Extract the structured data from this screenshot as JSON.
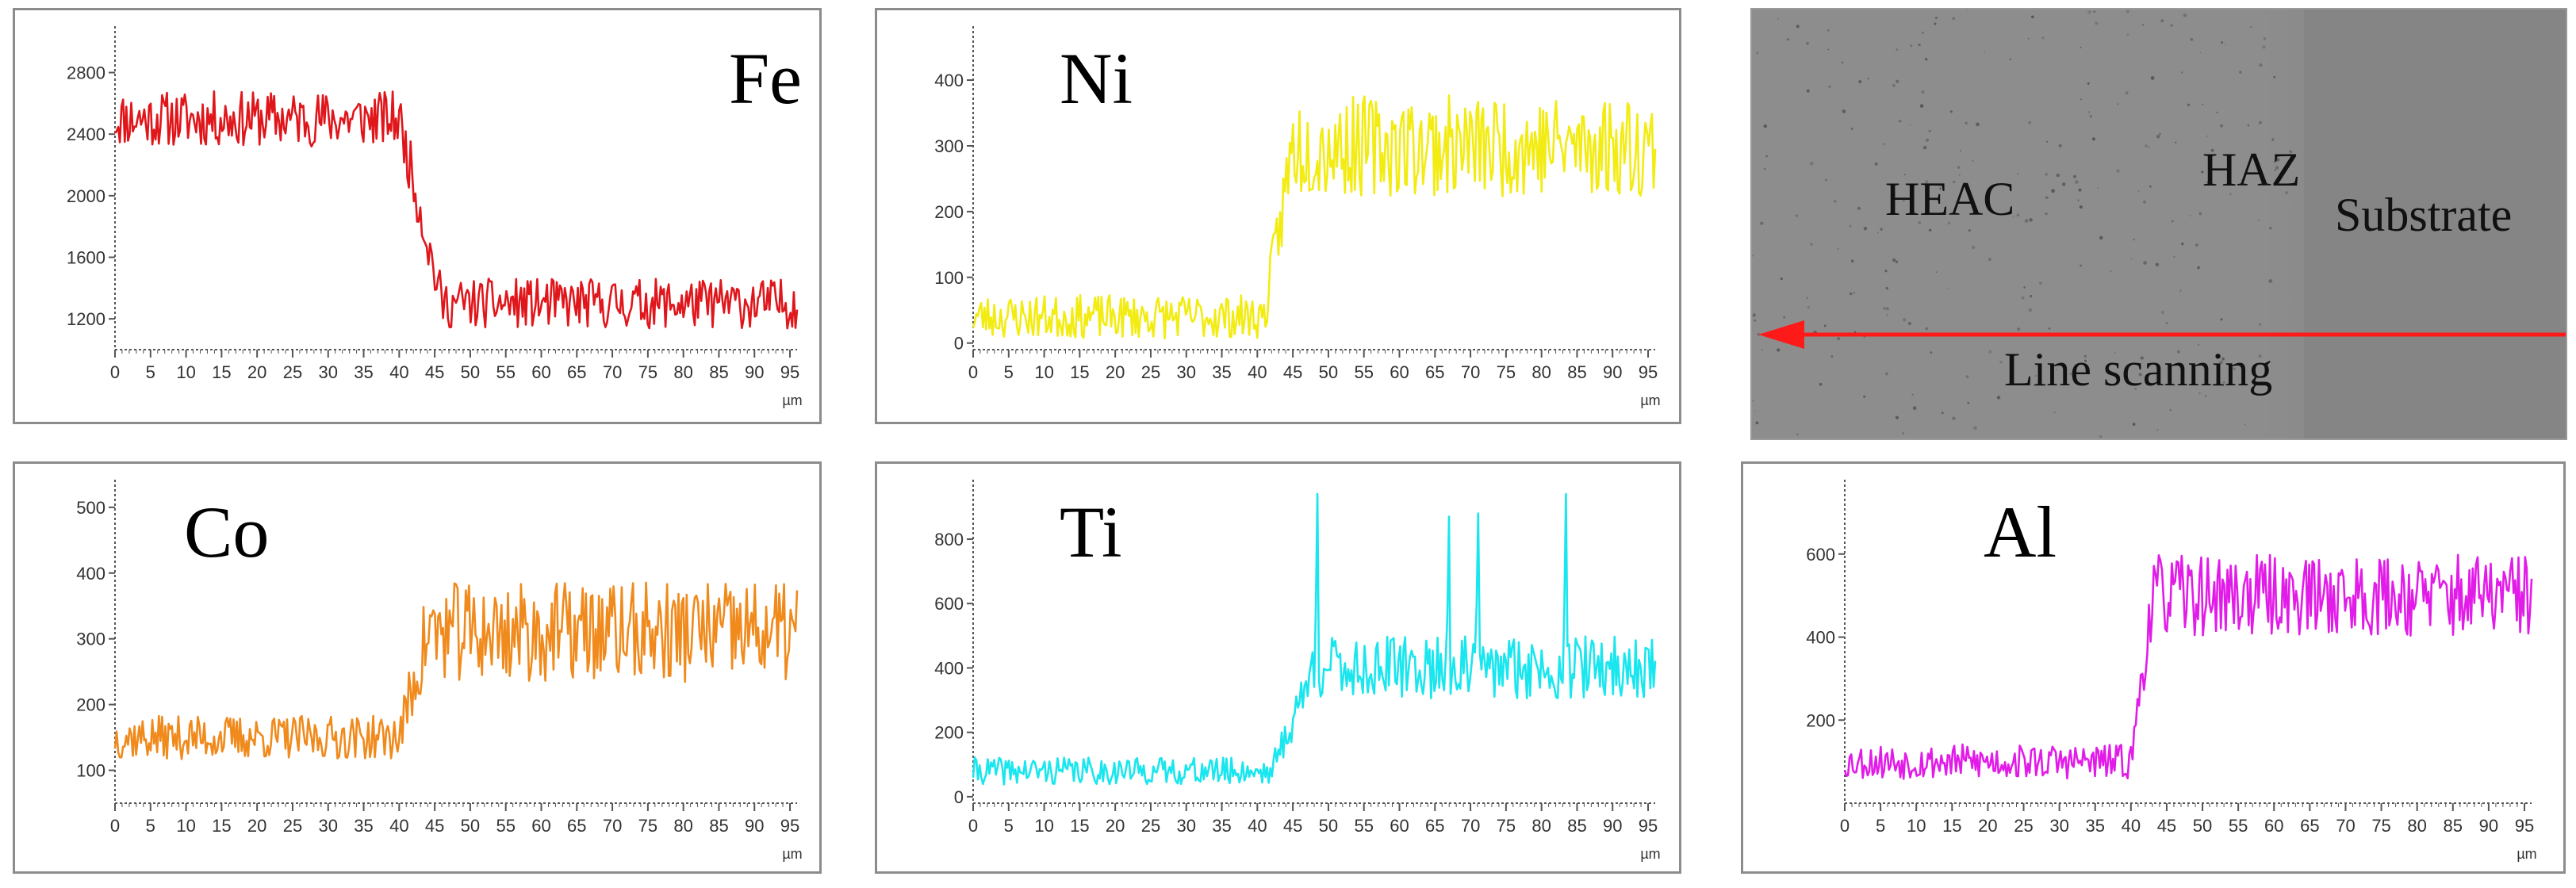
{
  "chart_data": [
    {
      "type": "line",
      "element": "Fe",
      "color": "#e0161b",
      "xlabel": "µm",
      "xticks": [
        0,
        5,
        10,
        15,
        20,
        25,
        30,
        35,
        40,
        45,
        50,
        55,
        60,
        65,
        70,
        75,
        80,
        85,
        90,
        95
      ],
      "xlim": [
        0,
        96
      ],
      "yticks": [
        1200,
        1600,
        2000,
        2400,
        2800
      ],
      "ylim": [
        1000,
        3050
      ],
      "profile": {
        "low": 1300,
        "high": 2500,
        "step_start": 40,
        "step_end": 46,
        "rising": false,
        "noise": 180,
        "seed": 11
      }
    },
    {
      "type": "line",
      "element": "Ni",
      "color": "#f2ec12",
      "xlabel": "µm",
      "xticks": [
        0,
        5,
        10,
        15,
        20,
        25,
        30,
        35,
        40,
        45,
        50,
        55,
        60,
        65,
        70,
        75,
        80,
        85,
        90,
        95
      ],
      "xlim": [
        0,
        96
      ],
      "yticks": [
        0,
        100,
        200,
        300,
        400
      ],
      "ylim": [
        -10,
        470
      ],
      "profile": {
        "low": 40,
        "high": 300,
        "step_start": 41,
        "step_end": 45,
        "rising": true,
        "noise": 55,
        "seed": 23
      }
    },
    {
      "type": "line",
      "element": "Co",
      "color": "#f08a1c",
      "xlabel": "µm",
      "xticks": [
        0,
        5,
        10,
        15,
        20,
        25,
        30,
        35,
        40,
        45,
        50,
        55,
        60,
        65,
        70,
        75,
        80,
        85,
        90,
        95
      ],
      "xlim": [
        0,
        96
      ],
      "yticks": [
        100,
        200,
        300,
        400,
        500
      ],
      "ylim": [
        50,
        530
      ],
      "profile": {
        "low": 150,
        "high": 310,
        "step_start": 40,
        "step_end": 44,
        "rising": true,
        "noise": 55,
        "seed": 37
      }
    },
    {
      "type": "line",
      "element": "Ti",
      "color": "#19e6ee",
      "xlabel": "µm",
      "xticks": [
        0,
        5,
        10,
        15,
        20,
        25,
        30,
        35,
        40,
        45,
        50,
        55,
        60,
        65,
        70,
        75,
        80,
        85,
        90,
        95
      ],
      "xlim": [
        0,
        96
      ],
      "yticks": [
        0,
        200,
        400,
        600,
        800
      ],
      "ylim": [
        -20,
        960
      ],
      "profile": {
        "low": 80,
        "high": 400,
        "step_start": 42,
        "step_end": 48,
        "rising": true,
        "noise": 70,
        "seed": 41
      },
      "peaks": [
        {
          "x": 48.5,
          "y": 940
        },
        {
          "x": 67,
          "y": 870
        },
        {
          "x": 71,
          "y": 880
        },
        {
          "x": 83.5,
          "y": 940
        }
      ]
    },
    {
      "type": "line",
      "element": "Al",
      "color": "#e21ce8",
      "xlabel": "µm",
      "xticks": [
        0,
        5,
        10,
        15,
        20,
        25,
        30,
        35,
        40,
        45,
        50,
        55,
        60,
        65,
        70,
        75,
        80,
        85,
        90,
        95
      ],
      "xlim": [
        0,
        96
      ],
      "yticks": [
        200,
        400,
        600
      ],
      "ylim": [
        0,
        760
      ],
      "profile": {
        "low": 100,
        "high": 500,
        "step_start": 40,
        "step_end": 43,
        "rising": true,
        "noise": 70,
        "seed": 53
      }
    }
  ],
  "micrograph": {
    "labels": {
      "heac": "HEAC",
      "haz": "HAZ",
      "substrate": "Substrate",
      "scan": "Line scanning"
    },
    "arrow_color": "#ff1a1a"
  }
}
